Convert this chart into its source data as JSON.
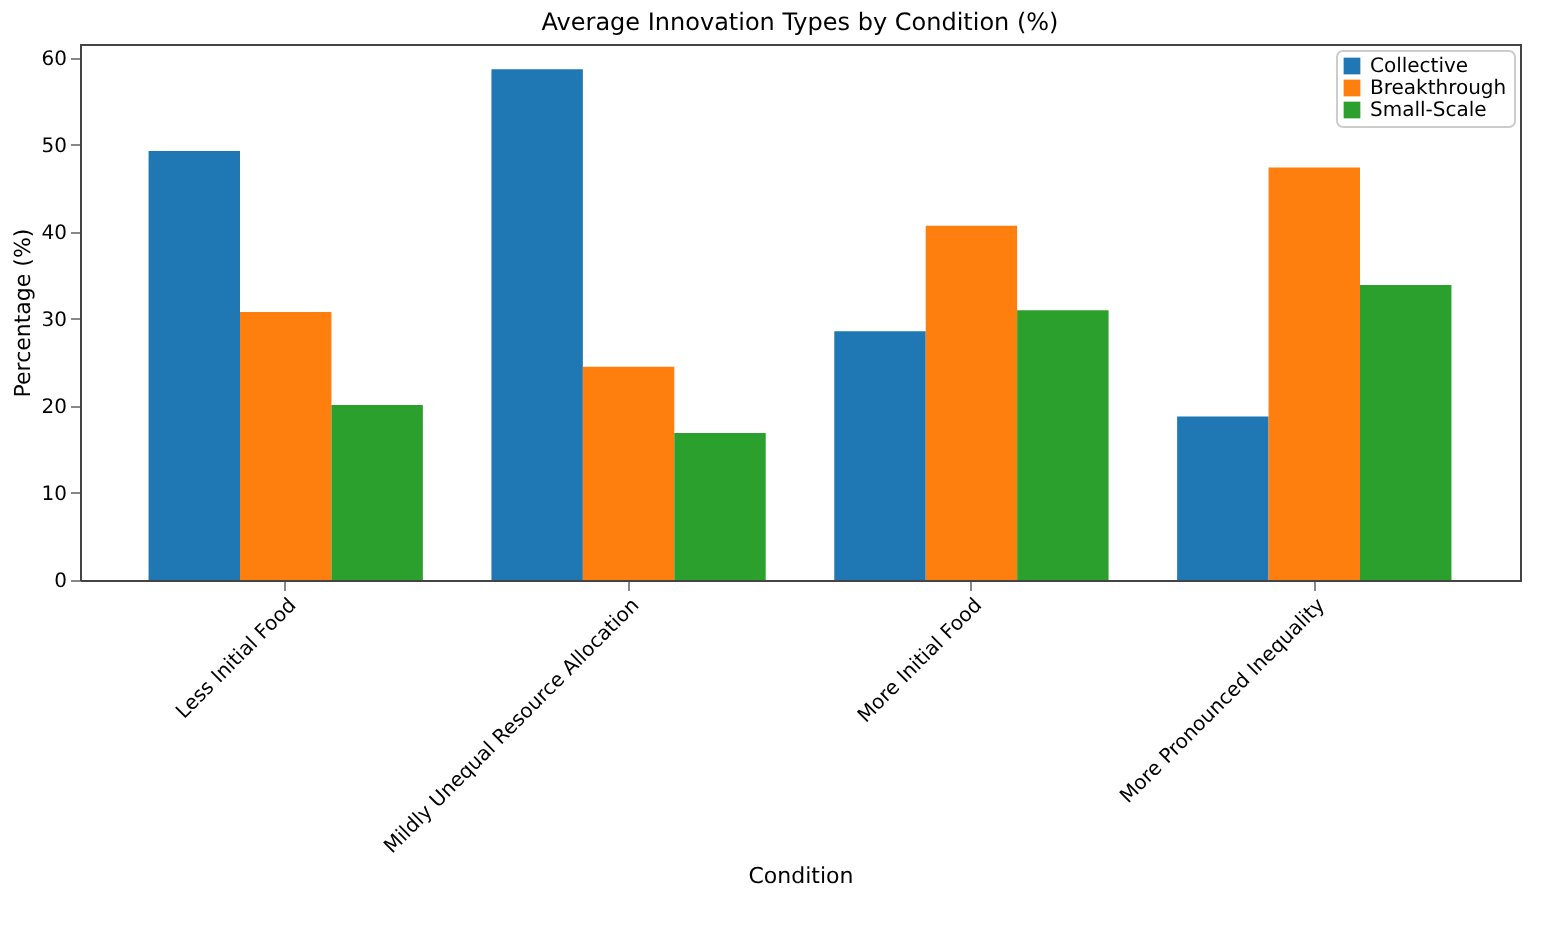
{
  "chart_data": {
    "type": "bar",
    "title": "Average Innovation Types by Condition (%)",
    "xlabel": "Condition",
    "ylabel": "Percentage (%)",
    "categories": [
      "Less Initial Food",
      "Mildly Unequal Resource Allocation",
      "More Initial Food",
      "More Pronounced Inequality"
    ],
    "series": [
      {
        "name": "Collective",
        "color": "#1f77b4",
        "values": [
          49.3,
          58.7,
          28.6,
          18.8
        ]
      },
      {
        "name": "Breakthrough",
        "color": "#ff7f0e",
        "values": [
          30.8,
          24.5,
          40.7,
          47.4
        ]
      },
      {
        "name": "Small-Scale",
        "color": "#2ca02c",
        "values": [
          20.1,
          16.9,
          31.0,
          33.9
        ]
      }
    ],
    "ylim": [
      0,
      61.6
    ],
    "yticks": [
      0,
      10,
      20,
      30,
      40,
      50,
      60
    ],
    "grid": false,
    "legend": "top right"
  }
}
